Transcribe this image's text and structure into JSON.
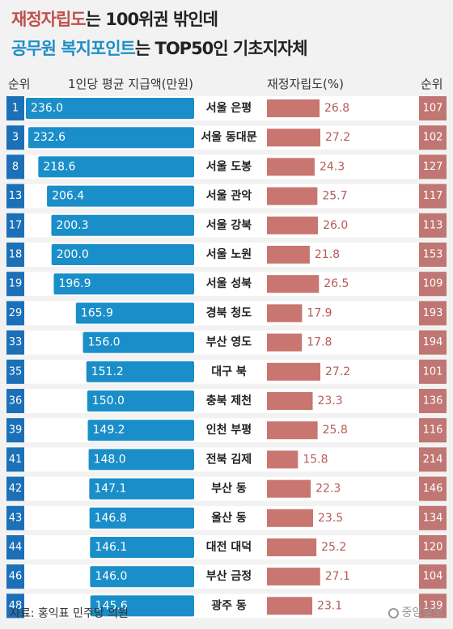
{
  "title": {
    "line1_highlight": "재정자립도",
    "line1_rest": "는 100위권 밖인데",
    "line2_highlight": "공무원 복지포인트",
    "line2_rest": "는 TOP50인 기초지자체"
  },
  "headers": {
    "rank_left": "순위",
    "amount": "1인당 평균 지급액(만원)",
    "ratio": "재정자립도(%)",
    "rank_right": "순위"
  },
  "colors": {
    "blue_bar": "#1a8ec8",
    "red_bar": "#c97570",
    "rank_left_bg": "#1b70b8",
    "rank_right_bg": "#c07672",
    "row_band": "#d9dadb",
    "row_bg": "#ffffff"
  },
  "chart_data": {
    "type": "bar",
    "categories": [
      "서울 은평",
      "서울 동대문",
      "서울 도봉",
      "서울 관악",
      "서울 강북",
      "서울 노원",
      "서울 성북",
      "경북 청도",
      "부산 영도",
      "대구 북",
      "충북 제천",
      "인천 부평",
      "전북 김제",
      "부산 동",
      "울산 동",
      "대전 대덕",
      "부산 금정",
      "광주 동"
    ],
    "series": [
      {
        "name": "1인당 평균 지급액(만원)",
        "values": [
          236.0,
          232.6,
          218.6,
          206.4,
          200.3,
          200.0,
          196.9,
          165.9,
          156.0,
          151.2,
          150.0,
          149.2,
          148.0,
          147.1,
          146.8,
          146.1,
          146.0,
          145.6
        ]
      },
      {
        "name": "재정자립도(%)",
        "values": [
          26.8,
          27.2,
          24.3,
          25.7,
          26.0,
          21.8,
          26.5,
          17.9,
          17.8,
          27.2,
          23.3,
          25.8,
          15.8,
          22.3,
          23.5,
          25.2,
          27.1,
          23.1
        ]
      }
    ],
    "rank_welfare": [
      1,
      3,
      8,
      13,
      17,
      18,
      19,
      29,
      33,
      35,
      36,
      39,
      41,
      42,
      43,
      44,
      46,
      48
    ],
    "rank_fiscal": [
      107,
      102,
      127,
      117,
      113,
      153,
      109,
      193,
      194,
      101,
      136,
      116,
      214,
      146,
      134,
      120,
      104,
      139
    ],
    "value_labels_amount": [
      "236.0",
      "232.6",
      "218.6",
      "206.4",
      "200.3",
      "200.0",
      "196.9",
      "165.9",
      "156.0",
      "151.2",
      "150.0",
      "149.2",
      "148.0",
      "147.1",
      "146.8",
      "146.1",
      "146.0",
      "145.6"
    ],
    "value_labels_ratio": [
      "26.8",
      "27.2",
      "24.3",
      "25.7",
      "26.0",
      "21.8",
      "26.5",
      "17.9",
      "17.8",
      "27.2",
      "23.3",
      "25.8",
      "15.8",
      "22.3",
      "23.5",
      "25.2",
      "27.1",
      "23.1"
    ]
  },
  "footer": {
    "source": "자료: 홍익표 민주당 의원",
    "logo": "중앙일보"
  }
}
